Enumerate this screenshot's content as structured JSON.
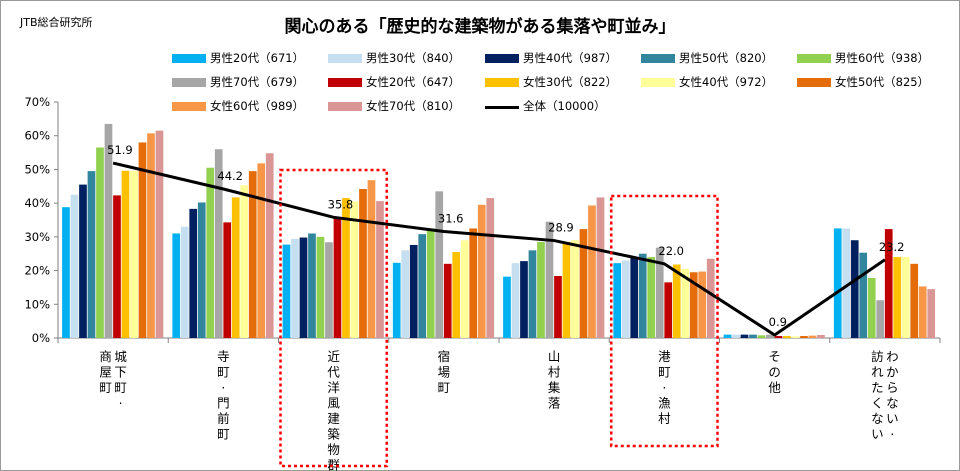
{
  "source_label": "JTB総合研究所",
  "chart_data": {
    "type": "bar",
    "title": "関心のある「歴史的な建築物がある集落や町並み」",
    "categories": [
      "城下町・商屋町",
      "寺町・門前町",
      "近代洋風建築物群",
      "宿場町",
      "山村集落",
      "港町・漁村",
      "その他",
      "わからない・訪れたくない"
    ],
    "ylim": [
      0,
      70
    ],
    "yticks": [
      "0%",
      "10%",
      "20%",
      "30%",
      "40%",
      "50%",
      "60%",
      "70%"
    ],
    "ytick_values": [
      0,
      10,
      20,
      30,
      40,
      50,
      60,
      70
    ],
    "grid": false,
    "legend_position": "top",
    "highlighted_categories": [
      "近代洋風建築物群",
      "港町・漁村"
    ],
    "series": [
      {
        "name": "男性20代（671）",
        "color": "#00b0f0",
        "values": [
          38.8,
          31.0,
          27.7,
          22.3,
          18.2,
          22.2,
          1.0,
          32.5
        ]
      },
      {
        "name": "男性30代（840）",
        "color": "#c5dff0",
        "values": [
          42.5,
          33.0,
          29.4,
          26.0,
          22.2,
          23.0,
          1.0,
          32.5
        ]
      },
      {
        "name": "男性40代（987）",
        "color": "#002060",
        "values": [
          45.5,
          38.3,
          29.8,
          27.6,
          22.8,
          23.7,
          1.0,
          29.0
        ]
      },
      {
        "name": "男性50代（820）",
        "color": "#31859c",
        "values": [
          49.5,
          40.2,
          31.0,
          30.8,
          26.0,
          25.0,
          1.0,
          25.3
        ]
      },
      {
        "name": "男性60代（938）",
        "color": "#92d050",
        "values": [
          56.5,
          50.5,
          30.0,
          32.5,
          28.5,
          24.0,
          0.8,
          17.8
        ]
      },
      {
        "name": "男性70代（679）",
        "color": "#a6a6a6",
        "values": [
          63.5,
          56.0,
          28.4,
          43.5,
          34.5,
          26.8,
          1.0,
          11.2
        ]
      },
      {
        "name": "女性20代（647）",
        "color": "#c00000",
        "values": [
          42.3,
          34.3,
          35.8,
          22.0,
          18.4,
          16.5,
          0.6,
          32.3
        ]
      },
      {
        "name": "女性30代（822）",
        "color": "#ffc000",
        "values": [
          49.6,
          41.7,
          41.5,
          25.5,
          28.5,
          21.8,
          0.6,
          24.0
        ]
      },
      {
        "name": "女性40代（972）",
        "color": "#ffff99",
        "values": [
          49.6,
          45.3,
          40.5,
          29.0,
          29.0,
          20.5,
          0.5,
          24.0
        ]
      },
      {
        "name": "女性50代（825）",
        "color": "#e46c0a",
        "values": [
          58.0,
          49.5,
          44.2,
          32.5,
          32.3,
          19.5,
          0.6,
          22.0
        ]
      },
      {
        "name": "女性60代（989）",
        "color": "#f79646",
        "values": [
          60.7,
          51.8,
          46.8,
          39.5,
          39.3,
          19.7,
          0.7,
          15.3
        ]
      },
      {
        "name": "女性70代（810）",
        "color": "#da9694",
        "values": [
          61.5,
          54.8,
          40.6,
          41.5,
          41.7,
          23.5,
          0.9,
          14.5
        ]
      }
    ],
    "total": {
      "name": "全体（10000）",
      "color": "#000000",
      "values": [
        51.9,
        44.2,
        35.8,
        31.6,
        28.9,
        22.0,
        0.9,
        23.2
      ],
      "labels": [
        "51.9",
        "44.2",
        "35.8",
        "31.6",
        "28.9",
        "22.0",
        "0.9",
        "23.2"
      ]
    }
  }
}
